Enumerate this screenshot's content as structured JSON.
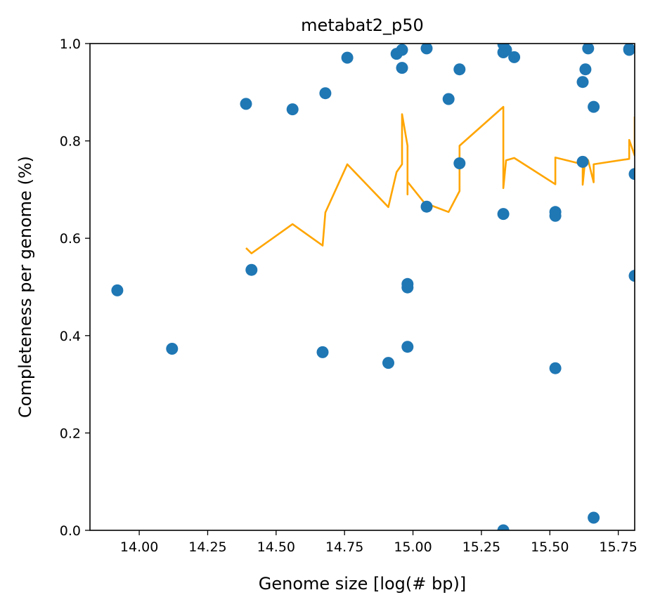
{
  "chart_data": {
    "type": "scatter",
    "title": "metabat2_p50",
    "xlabel": "Genome size [log(# bp)]",
    "ylabel": "Completeness per genome (%)",
    "xlim": [
      13.82,
      15.81
    ],
    "ylim": [
      0.0,
      1.0
    ],
    "x_ticks": [
      14.0,
      14.25,
      14.5,
      14.75,
      15.0,
      15.25,
      15.5,
      15.75
    ],
    "x_tick_labels": [
      "14.00",
      "14.25",
      "14.50",
      "14.75",
      "15.00",
      "15.25",
      "15.50",
      "15.75"
    ],
    "y_ticks": [
      0.0,
      0.2,
      0.4,
      0.6,
      0.8,
      1.0
    ],
    "y_tick_labels": [
      "0.0",
      "0.2",
      "0.4",
      "0.6",
      "0.8",
      "1.0"
    ],
    "grid": false,
    "colors": {
      "points": "#1f77b4",
      "line": "#ffa500"
    },
    "series": [
      {
        "kind": "scatter",
        "points": [
          {
            "x": 13.92,
            "y": 0.493
          },
          {
            "x": 14.12,
            "y": 0.373
          },
          {
            "x": 14.39,
            "y": 0.876
          },
          {
            "x": 14.41,
            "y": 0.535
          },
          {
            "x": 14.56,
            "y": 0.865
          },
          {
            "x": 14.67,
            "y": 0.366
          },
          {
            "x": 14.68,
            "y": 0.898
          },
          {
            "x": 14.76,
            "y": 0.971
          },
          {
            "x": 14.91,
            "y": 0.344
          },
          {
            "x": 14.94,
            "y": 0.979
          },
          {
            "x": 14.96,
            "y": 0.987
          },
          {
            "x": 14.96,
            "y": 0.95
          },
          {
            "x": 14.98,
            "y": 0.506
          },
          {
            "x": 14.98,
            "y": 0.499
          },
          {
            "x": 14.98,
            "y": 0.377
          },
          {
            "x": 15.05,
            "y": 0.99
          },
          {
            "x": 15.05,
            "y": 0.665
          },
          {
            "x": 15.13,
            "y": 0.886
          },
          {
            "x": 15.17,
            "y": 0.947
          },
          {
            "x": 15.17,
            "y": 0.754
          },
          {
            "x": 15.33,
            "y": 0.982
          },
          {
            "x": 15.33,
            "y": 0.999
          },
          {
            "x": 15.34,
            "y": 0.987
          },
          {
            "x": 15.33,
            "y": 0.65
          },
          {
            "x": 15.33,
            "y": 0.0
          },
          {
            "x": 15.37,
            "y": 0.972
          },
          {
            "x": 15.52,
            "y": 0.654
          },
          {
            "x": 15.52,
            "y": 0.646
          },
          {
            "x": 15.52,
            "y": 0.333
          },
          {
            "x": 15.62,
            "y": 0.921
          },
          {
            "x": 15.62,
            "y": 0.757
          },
          {
            "x": 15.63,
            "y": 0.947
          },
          {
            "x": 15.64,
            "y": 0.99
          },
          {
            "x": 15.66,
            "y": 0.87
          },
          {
            "x": 15.66,
            "y": 0.026
          },
          {
            "x": 15.79,
            "y": 0.987
          },
          {
            "x": 15.79,
            "y": 0.989
          },
          {
            "x": 15.81,
            "y": 0.732
          },
          {
            "x": 15.81,
            "y": 0.523
          }
        ]
      },
      {
        "kind": "line",
        "points": [
          {
            "x": 14.39,
            "y": 0.58
          },
          {
            "x": 14.41,
            "y": 0.569
          },
          {
            "x": 14.56,
            "y": 0.629
          },
          {
            "x": 14.67,
            "y": 0.585
          },
          {
            "x": 14.68,
            "y": 0.653
          },
          {
            "x": 14.76,
            "y": 0.752
          },
          {
            "x": 14.91,
            "y": 0.664
          },
          {
            "x": 14.94,
            "y": 0.736
          },
          {
            "x": 14.96,
            "y": 0.752
          },
          {
            "x": 14.96,
            "y": 0.855
          },
          {
            "x": 14.98,
            "y": 0.79
          },
          {
            "x": 14.98,
            "y": 0.69
          },
          {
            "x": 14.98,
            "y": 0.716
          },
          {
            "x": 15.05,
            "y": 0.667
          },
          {
            "x": 15.05,
            "y": 0.671
          },
          {
            "x": 15.13,
            "y": 0.654
          },
          {
            "x": 15.17,
            "y": 0.697
          },
          {
            "x": 15.17,
            "y": 0.79
          },
          {
            "x": 15.33,
            "y": 0.87
          },
          {
            "x": 15.33,
            "y": 0.703
          },
          {
            "x": 15.34,
            "y": 0.76
          },
          {
            "x": 15.37,
            "y": 0.765
          },
          {
            "x": 15.52,
            "y": 0.711
          },
          {
            "x": 15.52,
            "y": 0.766
          },
          {
            "x": 15.62,
            "y": 0.752
          },
          {
            "x": 15.62,
            "y": 0.71
          },
          {
            "x": 15.63,
            "y": 0.766
          },
          {
            "x": 15.64,
            "y": 0.76
          },
          {
            "x": 15.66,
            "y": 0.715
          },
          {
            "x": 15.66,
            "y": 0.752
          },
          {
            "x": 15.79,
            "y": 0.763
          },
          {
            "x": 15.79,
            "y": 0.802
          },
          {
            "x": 15.81,
            "y": 0.77
          },
          {
            "x": 15.81,
            "y": 0.85
          }
        ]
      }
    ]
  }
}
